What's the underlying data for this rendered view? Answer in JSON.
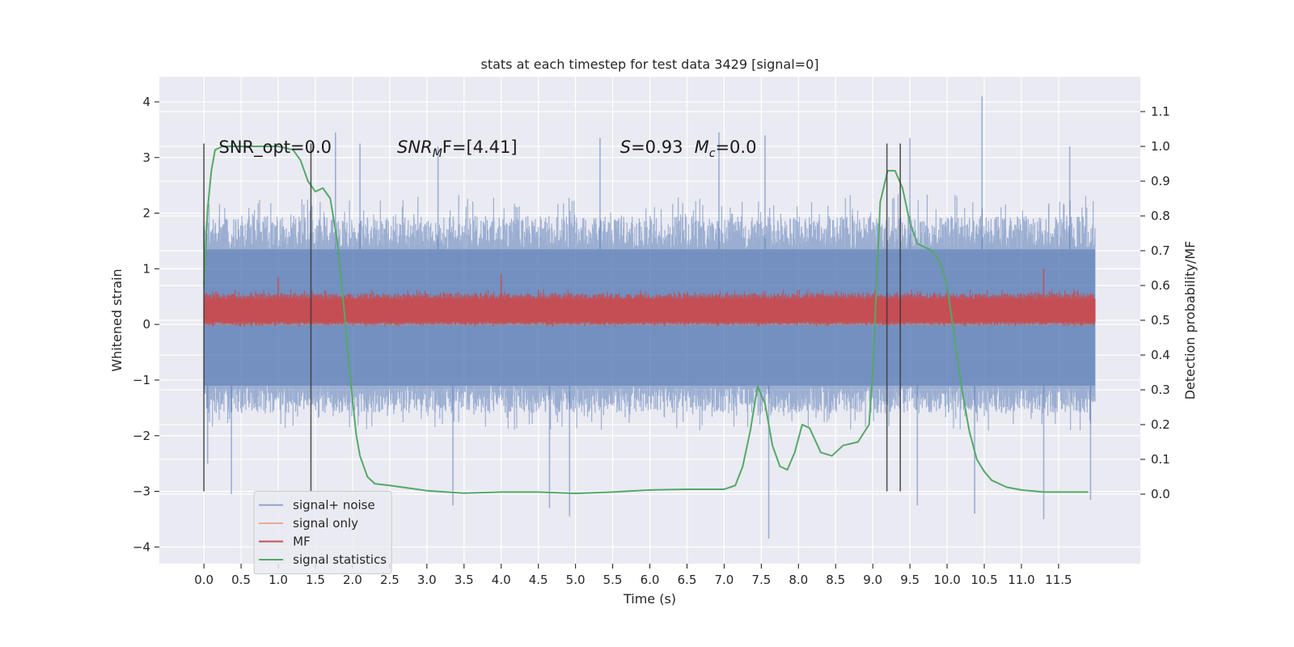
{
  "chart_data": {
    "type": "line",
    "title": "stats at each timestep for test data 3429 [signal=0]",
    "xlabel": "Time (s)",
    "ylabel_left": "Whitened strain",
    "ylabel_right": "Detection probability/MF",
    "xlim": [
      -0.6,
      12.6
    ],
    "ylim_left": [
      -4.3,
      4.45
    ],
    "ylim_right": [
      -0.2,
      1.2
    ],
    "x_ticks": [
      0.0,
      0.5,
      1.0,
      1.5,
      2.0,
      2.5,
      3.0,
      3.5,
      4.0,
      4.5,
      5.0,
      5.5,
      6.0,
      6.5,
      7.0,
      7.5,
      8.0,
      8.5,
      9.0,
      9.5,
      10.0,
      10.5,
      11.0,
      11.5
    ],
    "x_tick_labels": [
      "0.0",
      "0.5",
      "1.0",
      "1.5",
      "2.0",
      "2.5",
      "3.0",
      "3.5",
      "4.0",
      "4.5",
      "5.0",
      "5.5",
      "6.0",
      "6.5",
      "7.0",
      "7.5",
      "8.0",
      "8.5",
      "9.0",
      "9.5",
      "10.0",
      "10.5",
      "11.0",
      "11.5"
    ],
    "y_left_ticks": [
      -4,
      -3,
      -2,
      -1,
      0,
      1,
      2,
      3,
      4
    ],
    "y_left_tick_labels": [
      "−4",
      "−3",
      "−2",
      "−1",
      "0",
      "1",
      "2",
      "3",
      "4"
    ],
    "y_right_ticks": [
      0.0,
      0.1,
      0.2,
      0.3,
      0.4,
      0.5,
      0.6,
      0.7,
      0.8,
      0.9,
      1.0,
      1.1
    ],
    "y_right_tick_labels": [
      "0.0",
      "0.1",
      "0.2",
      "0.3",
      "0.4",
      "0.5",
      "0.6",
      "0.7",
      "0.8",
      "0.9",
      "1.0",
      "1.1"
    ],
    "grid": true,
    "legend_position": "lower-left",
    "annotations": [
      {
        "text": "SNR_opt=0.0",
        "x": 0.2,
        "y": 3.2
      },
      {
        "text": "SNR",
        "sub": "M",
        "tail": "F=[4.41]",
        "x": 2.6,
        "y": 3.2,
        "italic": true
      },
      {
        "text": "S",
        "tail": "=0.93",
        "x": 5.6,
        "y": 3.2,
        "italic": true
      },
      {
        "text": "M",
        "sub": "c",
        "tail": "=0.0",
        "x": 6.6,
        "y": 3.2,
        "italic": true
      }
    ],
    "vertical_lines": [
      {
        "x": 0.0,
        "y": [
          -3.0,
          3.25
        ]
      },
      {
        "x": 1.44,
        "y": [
          -3.0,
          3.25
        ]
      },
      {
        "x": 9.19,
        "y": [
          -3.0,
          3.25
        ]
      },
      {
        "x": 9.37,
        "y": [
          -3.0,
          3.25
        ]
      }
    ],
    "series": [
      {
        "name": "signal+ noise",
        "color": "#4c72b0",
        "alpha": 0.5,
        "axis": "left",
        "x_range": [
          0.0,
          11.99
        ],
        "kind": "noise",
        "noise_envelope": [
          -1.55,
          1.9
        ],
        "core_band": [
          -1.1,
          1.35
        ],
        "peaks": [
          {
            "x": 0.0,
            "y": 1.75
          },
          {
            "x": 1.77,
            "y": 3.45
          },
          {
            "x": 2.1,
            "y": 3.25
          },
          {
            "x": 3.15,
            "y": 3.2
          },
          {
            "x": 5.33,
            "y": 3.35
          },
          {
            "x": 6.93,
            "y": 3.45
          },
          {
            "x": 7.55,
            "y": 3.4
          },
          {
            "x": 9.5,
            "y": 3.35
          },
          {
            "x": 10.47,
            "y": 4.1
          },
          {
            "x": 11.65,
            "y": 3.2
          },
          {
            "x": 0.05,
            "y": -2.5
          },
          {
            "x": 0.37,
            "y": -3.05
          },
          {
            "x": 3.35,
            "y": -3.25
          },
          {
            "x": 4.65,
            "y": -3.3
          },
          {
            "x": 4.92,
            "y": -3.45
          },
          {
            "x": 7.6,
            "y": -3.85
          },
          {
            "x": 9.6,
            "y": -3.25
          },
          {
            "x": 10.37,
            "y": -3.4
          },
          {
            "x": 11.3,
            "y": -3.5
          },
          {
            "x": 11.93,
            "y": -3.15
          }
        ]
      },
      {
        "name": "signal only",
        "color": "#dd8452",
        "alpha": 0.5,
        "axis": "left",
        "x": [
          0.0,
          11.99
        ],
        "y": [
          0.0,
          0.0
        ]
      },
      {
        "name": "MF",
        "color": "#c44e52",
        "axis": "left",
        "x_range": [
          0.0,
          11.99
        ],
        "kind": "noise",
        "noise_envelope": [
          0.0,
          0.55
        ],
        "core_band": [
          0.05,
          0.45
        ],
        "peaks": [
          {
            "x": 1.0,
            "y": 0.85
          },
          {
            "x": 4.0,
            "y": 0.9
          },
          {
            "x": 11.3,
            "y": 1.0
          }
        ]
      },
      {
        "name": "signal statistics",
        "color": "#55a868",
        "axis": "right",
        "x": [
          0.0,
          0.05,
          0.1,
          0.15,
          0.25,
          0.4,
          0.6,
          0.8,
          1.0,
          1.2,
          1.3,
          1.4,
          1.5,
          1.6,
          1.7,
          1.8,
          1.9,
          1.95,
          2.0,
          2.05,
          2.1,
          2.2,
          2.3,
          2.5,
          3.0,
          3.5,
          4.0,
          4.5,
          5.0,
          5.5,
          6.0,
          6.5,
          7.0,
          7.15,
          7.25,
          7.35,
          7.45,
          7.55,
          7.65,
          7.75,
          7.85,
          7.95,
          8.05,
          8.15,
          8.3,
          8.45,
          8.6,
          8.8,
          8.95,
          9.0,
          9.05,
          9.1,
          9.2,
          9.3,
          9.4,
          9.5,
          9.6,
          9.7,
          9.8,
          9.9,
          10.0,
          10.1,
          10.2,
          10.3,
          10.4,
          10.5,
          10.6,
          10.8,
          11.0,
          11.3,
          11.6,
          11.9
        ],
        "y": [
          0.6,
          0.82,
          0.93,
          0.99,
          1.0,
          1.0,
          1.0,
          1.0,
          1.0,
          0.99,
          0.96,
          0.9,
          0.87,
          0.88,
          0.85,
          0.72,
          0.5,
          0.38,
          0.27,
          0.17,
          0.11,
          0.05,
          0.03,
          0.025,
          0.01,
          0.003,
          0.006,
          0.006,
          0.002,
          0.006,
          0.012,
          0.014,
          0.014,
          0.025,
          0.08,
          0.18,
          0.31,
          0.26,
          0.14,
          0.08,
          0.07,
          0.12,
          0.2,
          0.19,
          0.12,
          0.11,
          0.14,
          0.15,
          0.2,
          0.35,
          0.6,
          0.84,
          0.93,
          0.93,
          0.88,
          0.78,
          0.72,
          0.71,
          0.7,
          0.67,
          0.6,
          0.45,
          0.3,
          0.18,
          0.1,
          0.065,
          0.04,
          0.02,
          0.012,
          0.006,
          0.006,
          0.006
        ]
      }
    ]
  }
}
